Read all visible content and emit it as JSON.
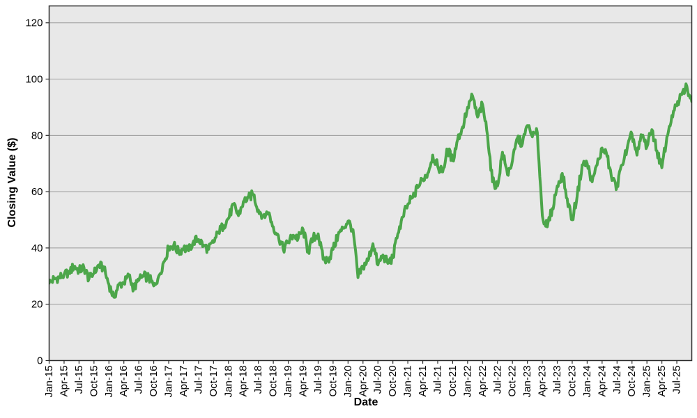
{
  "chart_data": {
    "type": "line",
    "title": "",
    "xlabel": "Date",
    "ylabel": "Closing Value ($)",
    "x_tick_labels": [
      "Jan-15",
      "Apr-15",
      "Jul-15",
      "Oct-15",
      "Jan-16",
      "Apr-16",
      "Jul-16",
      "Oct-16",
      "Jan-17",
      "Apr-17",
      "Jul-17",
      "Oct-17",
      "Jan-18",
      "Apr-18",
      "Jul-18",
      "Oct-18",
      "Jan-19",
      "Apr-19",
      "Jul-19",
      "Oct-19",
      "Jan-20",
      "Apr-20",
      "Jul-20",
      "Oct-20",
      "Jan-21",
      "Apr-21",
      "Jul-21",
      "Oct-21",
      "Jan-22",
      "Apr-22",
      "Jul-22",
      "Oct-22",
      "Jan-23",
      "Apr-23",
      "Jul-23",
      "Oct-23",
      "Jan-24",
      "Apr-24",
      "Jul-24",
      "Oct-24",
      "Jan-25",
      "Apr-25",
      "Jul-25"
    ],
    "y_ticks": [
      0,
      20,
      40,
      60,
      80,
      100,
      120
    ],
    "ylim": [
      0,
      126
    ],
    "xlim_months": [
      0,
      129
    ],
    "x_start": "Jan-2015",
    "x_end": "Oct-2025",
    "x_frequency": "monthly",
    "values": [
      27.5,
      29,
      29.5,
      30.5,
      31.5,
      33.5,
      32,
      33,
      29,
      31,
      34,
      32.5,
      27,
      22.5,
      27,
      27.5,
      30,
      25.5,
      28.5,
      30,
      29.5,
      26.5,
      30,
      35,
      40,
      41,
      38.5,
      40,
      39,
      42.5,
      43,
      41,
      39.5,
      42,
      45.5,
      48,
      50.5,
      55.5,
      51.5,
      56.5,
      58,
      59,
      53.5,
      51.5,
      52.5,
      47.5,
      44.5,
      39.5,
      42,
      44.5,
      43.5,
      46.5,
      38.5,
      43.5,
      45,
      36,
      35.5,
      39.5,
      44.5,
      47,
      49.5,
      46.5,
      29.5,
      33.5,
      35.5,
      41.5,
      34,
      37.5,
      34.5,
      36.5,
      45,
      51,
      55.5,
      58,
      61.5,
      64.5,
      66.5,
      73,
      69,
      67,
      75,
      71,
      78.5,
      83,
      90,
      94,
      86.5,
      91,
      80,
      63.5,
      62,
      74,
      66,
      71,
      79,
      77,
      83.5,
      79.5,
      81,
      51.5,
      47.5,
      54,
      62,
      66.5,
      57.5,
      50,
      58.5,
      69.5,
      70,
      63.5,
      69.5,
      75.5,
      72.5,
      64,
      62,
      69.5,
      75,
      80.5,
      73,
      80,
      76,
      82,
      74.5,
      68.5,
      79.5,
      87,
      90.5,
      94.5,
      97.5,
      92
    ],
    "grid": "horizontal-only",
    "legend": "none",
    "line_color": "#4ca64a",
    "plot_bg_color": "#e8e8e8",
    "grid_color": "#9a9a9a",
    "frame_color": "#2b2b2b",
    "noise_amplitude": 1.7
  }
}
